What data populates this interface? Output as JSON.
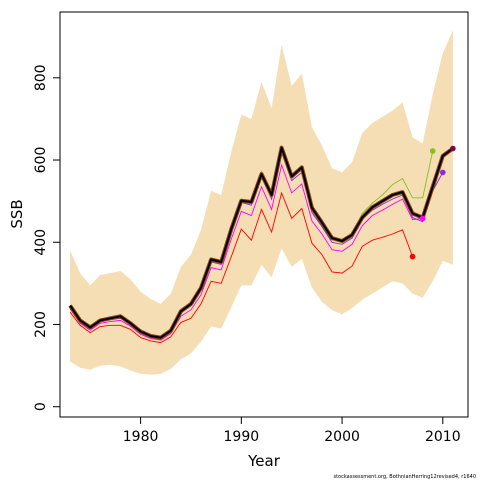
{
  "chart_data": {
    "type": "line",
    "title": "",
    "xlabel": "Year",
    "ylabel": "SSB",
    "xlim": [
      1972,
      2012.5
    ],
    "ylim": [
      -25,
      960
    ],
    "x_ticks": [
      1980,
      1990,
      2000,
      2010
    ],
    "y_ticks": [
      0,
      200,
      400,
      600,
      800
    ],
    "grid": false,
    "legend": "none",
    "footnote": "stockassessment.org, BothnianHerring12revised4, r1640",
    "colors": {
      "band": "#f5deb3",
      "main": "#000000",
      "main_under": "#8b4513",
      "lime": "#7fc31c",
      "red": "#ff0000",
      "magenta": "#ff00ff",
      "purple": "#8a2be2",
      "darkmagenta": "#8b004b"
    },
    "band": {
      "x": [
        1973,
        1974,
        1975,
        1976,
        1977,
        1978,
        1979,
        1980,
        1981,
        1982,
        1983,
        1984,
        1985,
        1986,
        1987,
        1988,
        1989,
        1990,
        1991,
        1992,
        1993,
        1994,
        1995,
        1996,
        1997,
        1998,
        1999,
        2000,
        2001,
        2002,
        2003,
        2004,
        2005,
        2006,
        2007,
        2008,
        2009,
        2010,
        2011
      ],
      "upper": [
        380,
        325,
        295,
        320,
        325,
        330,
        310,
        280,
        262,
        250,
        275,
        340,
        370,
        430,
        525,
        515,
        620,
        710,
        700,
        790,
        725,
        880,
        780,
        810,
        680,
        635,
        580,
        570,
        595,
        665,
        690,
        705,
        720,
        740,
        655,
        640,
        760,
        860,
        915
      ],
      "lower": [
        110,
        95,
        90,
        100,
        102,
        98,
        88,
        80,
        78,
        80,
        92,
        115,
        130,
        158,
        195,
        190,
        242,
        295,
        295,
        345,
        315,
        385,
        340,
        360,
        290,
        255,
        235,
        225,
        240,
        260,
        275,
        290,
        305,
        300,
        275,
        265,
        305,
        355,
        345
      ]
    },
    "series": [
      {
        "color": "#7fc31c",
        "x": [
          1973,
          1974,
          1975,
          1976,
          1977,
          1978,
          1979,
          1980,
          1981,
          1982,
          1983,
          1984,
          1985,
          1986,
          1987,
          1988,
          1989,
          1990,
          1991,
          1992,
          1993,
          1994,
          1995,
          1996,
          1997,
          1998,
          1999,
          2000,
          2001,
          2002,
          2003,
          2004,
          2005,
          2006,
          2007,
          2008,
          2009
        ],
        "y": [
          245,
          210,
          193,
          210,
          215,
          220,
          203,
          183,
          172,
          168,
          185,
          232,
          250,
          289,
          358,
          352,
          432,
          505,
          500,
          572,
          515,
          632,
          560,
          582,
          484,
          448,
          410,
          403,
          418,
          470,
          495,
          515,
          540,
          555,
          508,
          508,
          622
        ]
      },
      {
        "color": "#ff0000",
        "x": [
          1973,
          1974,
          1975,
          1976,
          1977,
          1978,
          1979,
          1980,
          1981,
          1982,
          1983,
          1984,
          1985,
          1986,
          1987,
          1988,
          1989,
          1990,
          1991,
          1992,
          1993,
          1994,
          1995,
          1996,
          1997,
          1998,
          1999,
          2000,
          2001,
          2002,
          2003,
          2004,
          2005,
          2006,
          2007
        ],
        "y": [
          230,
          198,
          180,
          195,
          198,
          198,
          188,
          168,
          160,
          156,
          170,
          205,
          215,
          250,
          305,
          300,
          365,
          432,
          405,
          480,
          425,
          520,
          458,
          482,
          398,
          370,
          328,
          325,
          342,
          390,
          405,
          412,
          420,
          430,
          365
        ]
      },
      {
        "color": "#ff00ff",
        "x": [
          1973,
          1974,
          1975,
          1976,
          1977,
          1978,
          1979,
          1980,
          1981,
          1982,
          1983,
          1984,
          1985,
          1986,
          1987,
          1988,
          1989,
          1990,
          1991,
          1992,
          1993,
          1994,
          1995,
          1996,
          1997,
          1998,
          1999,
          2000,
          2001,
          2002,
          2003,
          2004,
          2005,
          2006,
          2007,
          2008
        ],
        "y": [
          238,
          203,
          186,
          203,
          207,
          210,
          196,
          176,
          166,
          162,
          178,
          220,
          236,
          272,
          338,
          333,
          408,
          475,
          465,
          535,
          480,
          588,
          520,
          542,
          452,
          420,
          382,
          378,
          395,
          440,
          465,
          478,
          492,
          505,
          455,
          458
        ]
      },
      {
        "color": "#8a2be2",
        "x": [
          1973,
          1974,
          1975,
          1976,
          1977,
          1978,
          1979,
          1980,
          1981,
          1982,
          1983,
          1984,
          1985,
          1986,
          1987,
          1988,
          1989,
          1990,
          1991,
          1992,
          1993,
          1994,
          1995,
          1996,
          1997,
          1998,
          1999,
          2000,
          2001,
          2002,
          2003,
          2004,
          2005,
          2006,
          2007,
          2008,
          2009,
          2010
        ],
        "y": [
          243,
          207,
          190,
          207,
          212,
          215,
          200,
          180,
          170,
          166,
          182,
          228,
          246,
          285,
          352,
          346,
          425,
          497,
          490,
          562,
          505,
          620,
          550,
          570,
          472,
          438,
          400,
          395,
          410,
          455,
          478,
          492,
          505,
          515,
          460,
          450,
          525,
          570
        ]
      },
      {
        "color": "#8b004b",
        "x": [
          1973,
          1974,
          1975,
          1976,
          1977,
          1978,
          1979,
          1980,
          1981,
          1982,
          1983,
          1984,
          1985,
          1986,
          1987,
          1988,
          1989,
          1990,
          1991,
          1992,
          1993,
          1994,
          1995,
          1996,
          1997,
          1998,
          1999,
          2000,
          2001,
          2002,
          2003,
          2004,
          2005,
          2006,
          2007,
          2008,
          2009,
          2010,
          2011
        ],
        "y": [
          245,
          210,
          193,
          210,
          215,
          220,
          203,
          183,
          172,
          168,
          185,
          232,
          250,
          289,
          358,
          352,
          432,
          501,
          498,
          566,
          515,
          630,
          560,
          582,
          484,
          448,
          410,
          403,
          418,
          458,
          483,
          498,
          512,
          520,
          468,
          458,
          535,
          608,
          628
        ]
      },
      {
        "color": "#000000",
        "x": [
          1973,
          1974,
          1975,
          1976,
          1977,
          1978,
          1979,
          1980,
          1981,
          1982,
          1983,
          1984,
          1985,
          1986,
          1987,
          1988,
          1989,
          1990,
          1991,
          1992,
          1993,
          1994,
          1995,
          1996,
          1997,
          1998,
          1999,
          2000,
          2001,
          2002,
          2003,
          2004,
          2005,
          2006,
          2007,
          2008,
          2009,
          2010,
          2011
        ],
        "y": [
          246,
          210,
          193,
          210,
          215,
          220,
          203,
          183,
          172,
          168,
          185,
          232,
          250,
          289,
          358,
          352,
          432,
          501,
          498,
          566,
          515,
          630,
          560,
          582,
          484,
          448,
          410,
          403,
          418,
          460,
          485,
          500,
          515,
          522,
          470,
          460,
          535,
          610,
          628
        ]
      }
    ],
    "end_points": [
      {
        "color": "#ff0000",
        "x": 2007,
        "y": 365
      },
      {
        "color": "#ff00ff",
        "x": 2008,
        "y": 458
      },
      {
        "color": "#7fc31c",
        "x": 2009,
        "y": 622
      },
      {
        "color": "#8a2be2",
        "x": 2010,
        "y": 570
      },
      {
        "color": "#8b004b",
        "x": 2011,
        "y": 628
      }
    ]
  }
}
